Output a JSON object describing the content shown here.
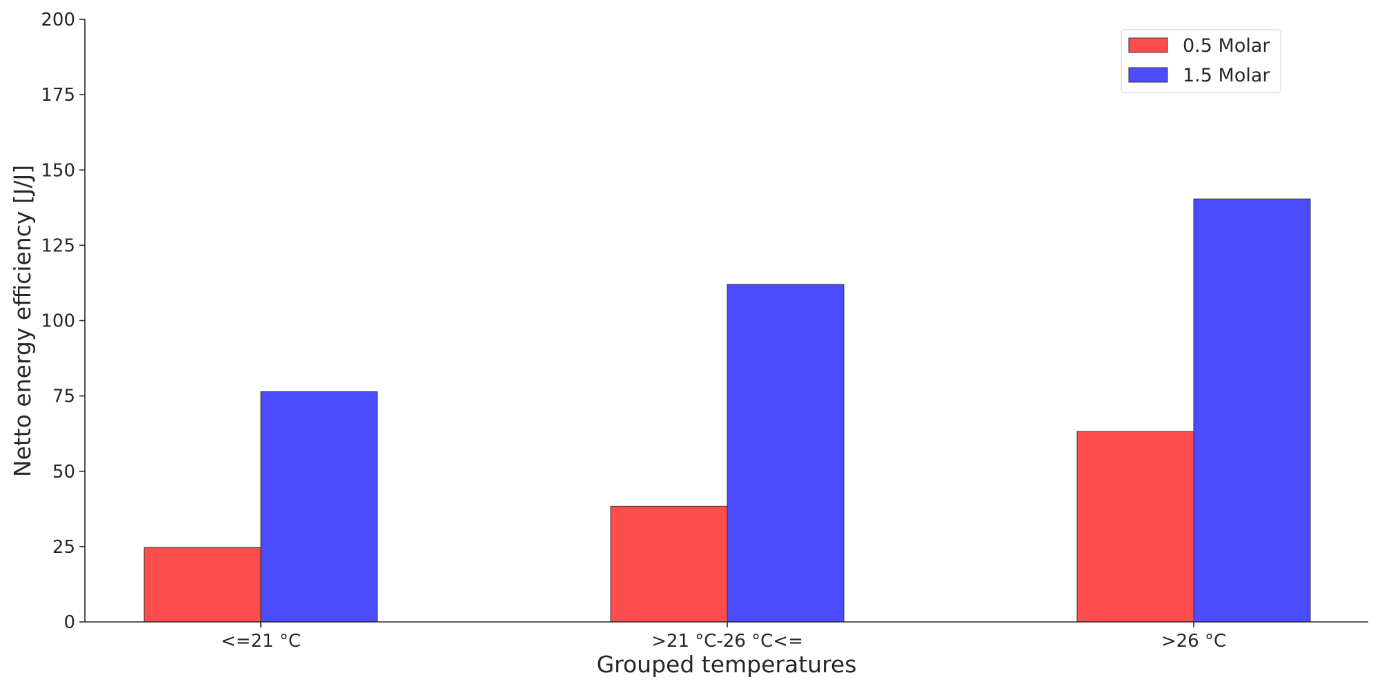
{
  "chart_data": {
    "type": "bar",
    "xlabel": "Grouped temperatures",
    "ylabel": "Netto energy efficiency [J/J]",
    "categories": [
      "<=21 °C",
      ">21 °C-26 °C<=",
      ">26 °C"
    ],
    "series": [
      {
        "name": "0.5 Molar",
        "values": [
          24.7,
          38.4,
          63.2
        ],
        "color": "#ff4c4c"
      },
      {
        "name": "1.5 Molar",
        "values": [
          76.4,
          112.0,
          140.4
        ],
        "color": "#4c4cff"
      }
    ],
    "ylim": [
      0,
      200
    ],
    "yticks": [
      0,
      25,
      50,
      75,
      100,
      125,
      150,
      175,
      200
    ],
    "grid": false,
    "legend_position": "top-right"
  }
}
